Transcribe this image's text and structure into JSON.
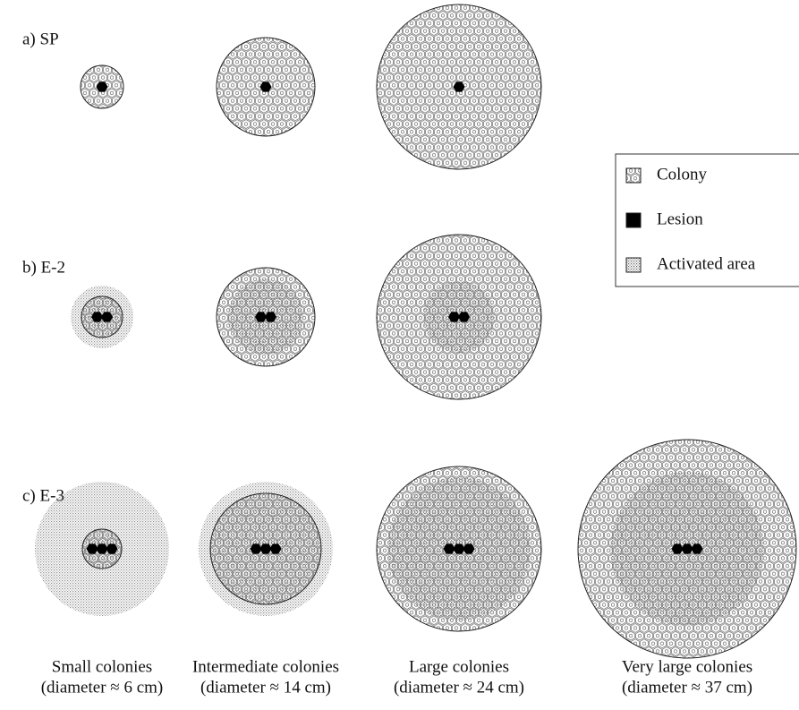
{
  "rows": [
    {
      "label": "a) SP"
    },
    {
      "label": "b) E-2"
    },
    {
      "label": "c) E-3"
    }
  ],
  "columns": [
    {
      "name": "Small colonies",
      "size": "(diameter ≈ 6 cm)"
    },
    {
      "name": "Intermediate colonies",
      "size": "(diameter ≈ 14 cm)"
    },
    {
      "name": "Large colonies",
      "size": "(diameter ≈ 24 cm)"
    },
    {
      "name": "Very large colonies",
      "size": "(diameter ≈ 37 cm)"
    }
  ],
  "legend": {
    "items": [
      {
        "label": "Colony"
      },
      {
        "label": "Lesion"
      },
      {
        "label": "Activated area"
      }
    ]
  }
}
